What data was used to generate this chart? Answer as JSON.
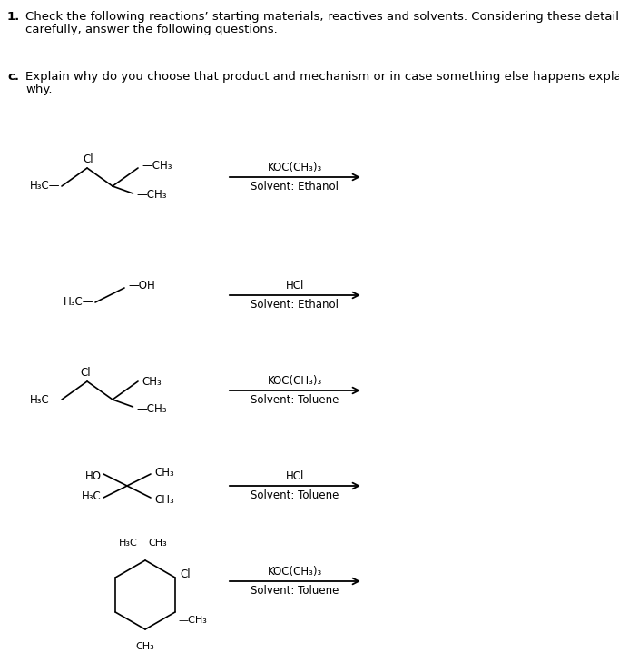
{
  "bg_color": "#ffffff",
  "text_color": "#000000",
  "header_bold": "1.",
  "header_text1": "Check the following reactions’ starting materials, reactives and solvents. Considering these details",
  "header_text2": "carefully, answer the following questions.",
  "sub_bold": "c.",
  "sub_text1": "Explain why do you choose that product and mechanism or in case something else happens explain",
  "sub_text2": "why.",
  "reactions": [
    {
      "reagent": "KOC(CH₃)₃",
      "solvent": "Solvent: Ethanol"
    },
    {
      "reagent": "HCl",
      "solvent": "Solvent: Ethanol"
    },
    {
      "reagent": "KOC(CH₃)₃",
      "solvent": "Solvent: Toluene"
    },
    {
      "reagent": "HCl",
      "solvent": "Solvent: Toluene"
    },
    {
      "reagent": "KOC(CH₃)₃",
      "solvent": "Solvent: Toluene"
    }
  ]
}
